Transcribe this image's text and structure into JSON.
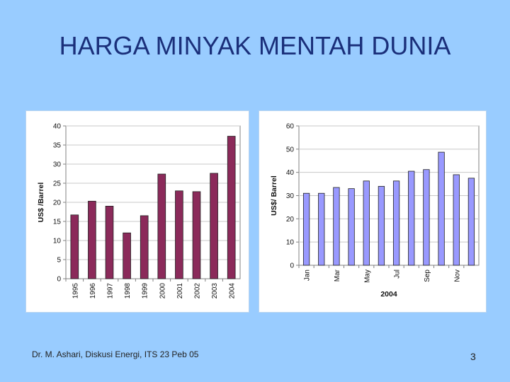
{
  "slide": {
    "title": "HARGA MINYAK MENTAH DUNIA",
    "footer": "Dr. M. Ashari, Diskusi Energi, ITS 23 Peb 05",
    "page_number": "3"
  },
  "colors": {
    "background": "#99ccff",
    "title": "#1a2f7a",
    "left_bar": "#8b2a5a",
    "right_bar": "#9999ff"
  },
  "chart_data": [
    {
      "type": "bar",
      "title": "",
      "xlabel": "",
      "ylabel": "US$ /Barrel",
      "ylim": [
        0,
        40
      ],
      "yticks": [
        0,
        5,
        10,
        15,
        20,
        25,
        30,
        35,
        40
      ],
      "grid": true,
      "categories": [
        "1995",
        "1996",
        "1997",
        "1998",
        "1999",
        "2000",
        "2001",
        "2002",
        "2003",
        "2004"
      ],
      "values": [
        16.7,
        20.3,
        19.0,
        12.0,
        16.5,
        27.4,
        23.0,
        22.8,
        27.6,
        37.3
      ]
    },
    {
      "type": "bar",
      "title": "",
      "xlabel": "2004",
      "ylabel": "US$/ Barrel",
      "ylim": [
        0,
        60
      ],
      "yticks": [
        0,
        10,
        20,
        30,
        40,
        50,
        60
      ],
      "grid": true,
      "categories": [
        "Jan",
        "",
        "Mar",
        "",
        "May",
        "",
        "Jul",
        "",
        "Sep",
        "",
        "Nov",
        ""
      ],
      "values": [
        31,
        31,
        33.5,
        33,
        36.3,
        34,
        36.3,
        40.5,
        41.2,
        48.7,
        39,
        37.5
      ]
    }
  ]
}
